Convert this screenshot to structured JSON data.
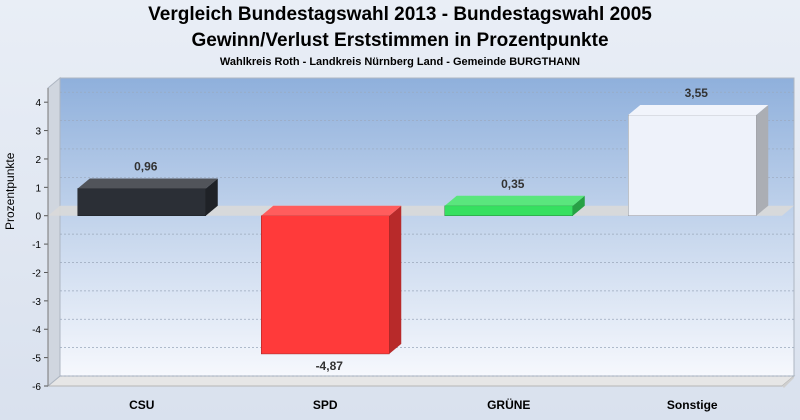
{
  "header": {
    "title_line1": "Vergleich Bundestagswahl 2013  - Bundestagswahl 2005",
    "title_line2": "Gewinn/Verlust Erststimmen in Prozentpunkte",
    "subtitle": "Wahlkreis Roth - Landkreis Nürnberg Land - Gemeinde BURGTHANN"
  },
  "chart_data": {
    "type": "bar",
    "title": "Vergleich Bundestagswahl 2013  - Bundestagswahl 2005 / Gewinn/Verlust Erststimmen in Prozentpunkte",
    "subtitle": "Wahlkreis Roth - Landkreis Nürnberg Land - Gemeinde BURGTHANN",
    "xlabel": "",
    "ylabel": "Prozentpunkte",
    "categories": [
      "CSU",
      "SPD",
      "GRÜNE",
      "Sonstige"
    ],
    "values": [
      0.96,
      -4.87,
      0.35,
      3.55
    ],
    "value_labels": [
      "0,96",
      "-4,87",
      "0,35",
      "3,55"
    ],
    "colors": [
      "#2b2f36",
      "#ff3a3a",
      "#36e060",
      "#eef2fa"
    ],
    "ylim": [
      -6,
      4.5
    ],
    "yticks": [
      4,
      3,
      2,
      1,
      0,
      -1,
      -2,
      -3,
      -4,
      -5,
      -6
    ],
    "grid": true,
    "legend": "none"
  }
}
